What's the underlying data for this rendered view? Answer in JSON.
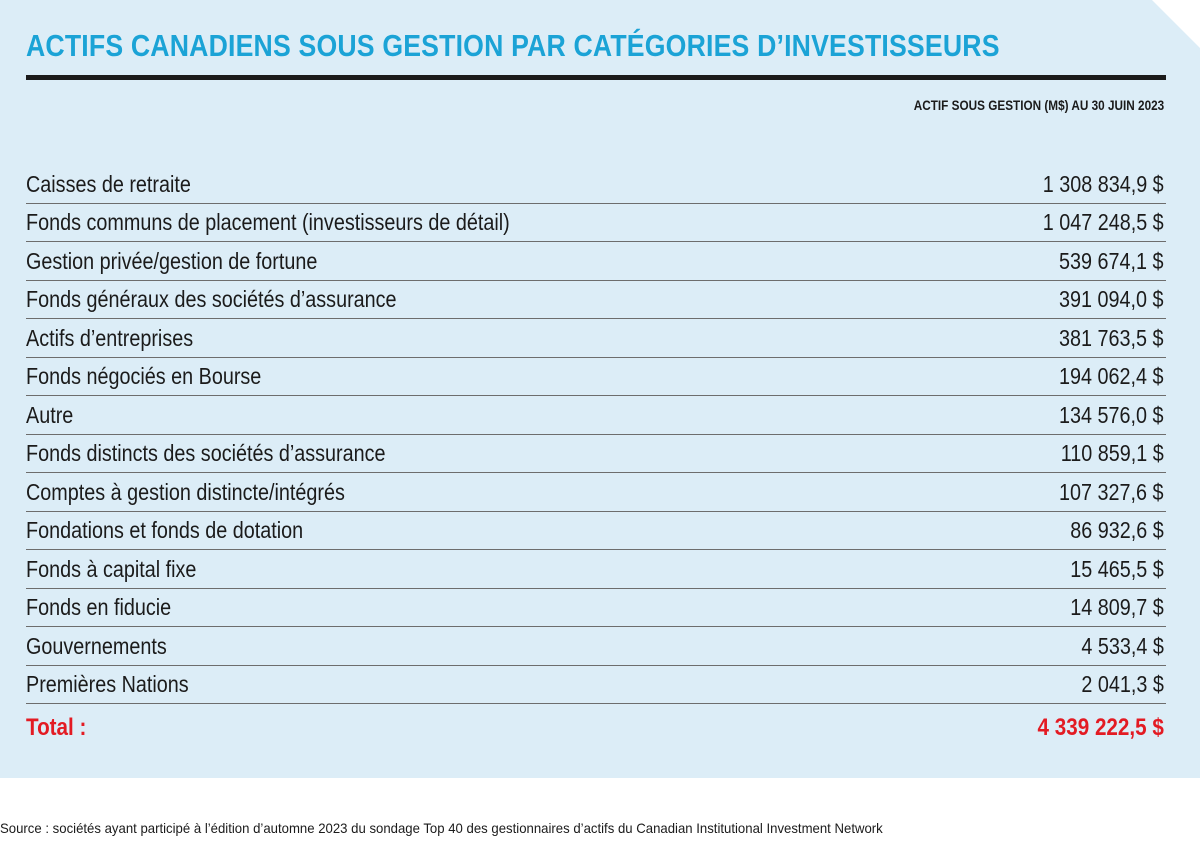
{
  "colors": {
    "panel_background": "#dcedf7",
    "title": "#1ba3d6",
    "text": "#1b1b1b",
    "total": "#e31b23"
  },
  "chart_data": {
    "type": "table",
    "title": "ACTIFS CANADIENS SOUS GESTION PAR CATÉGORIES D’INVESTISSEURS",
    "column_header": "ACTIF SOUS GESTION (M$) AU 30 JUIN 2023",
    "rows": [
      {
        "label": "Caisses de retraite",
        "value_text": "1 308 834,9 $",
        "value": 1308834.9
      },
      {
        "label": "Fonds communs de placement (investisseurs de détail)",
        "value_text": "1 047 248,5 $",
        "value": 1047248.5
      },
      {
        "label": "Gestion privée/gestion de fortune",
        "value_text": "539 674,1 $",
        "value": 539674.1
      },
      {
        "label": "Fonds généraux des sociétés d’assurance",
        "value_text": "391 094,0 $",
        "value": 391094.0
      },
      {
        "label": "Actifs d’entreprises",
        "value_text": "381 763,5 $",
        "value": 381763.5
      },
      {
        "label": "Fonds négociés en Bourse",
        "value_text": "194 062,4 $",
        "value": 194062.4
      },
      {
        "label": "Autre",
        "value_text": "134 576,0 $",
        "value": 134576.0
      },
      {
        "label": "Fonds distincts des sociétés d’assurance",
        "value_text": "110 859,1 $",
        "value": 110859.1
      },
      {
        "label": "Comptes à gestion distincte/intégrés",
        "value_text": "107 327,6 $",
        "value": 107327.6
      },
      {
        "label": "Fondations et fonds de dotation",
        "value_text": "86 932,6 $",
        "value": 86932.6
      },
      {
        "label": "Fonds à capital fixe",
        "value_text": "15 465,5 $",
        "value": 15465.5
      },
      {
        "label": "Fonds en fiducie",
        "value_text": "14 809,7 $",
        "value": 14809.7
      },
      {
        "label": "Gouvernements",
        "value_text": "4 533,4 $",
        "value": 4533.4
      },
      {
        "label": "Premières Nations",
        "value_text": "2 041,3 $",
        "value": 2041.3
      }
    ],
    "total": {
      "label": "Total :",
      "value_text": "4 339 222,5 $",
      "value": 4339222.5
    }
  },
  "source": "Source : sociétés ayant participé à l’édition d’automne 2023 du sondage Top 40 des gestionnaires d’actifs du Canadian Institutional Investment Network"
}
